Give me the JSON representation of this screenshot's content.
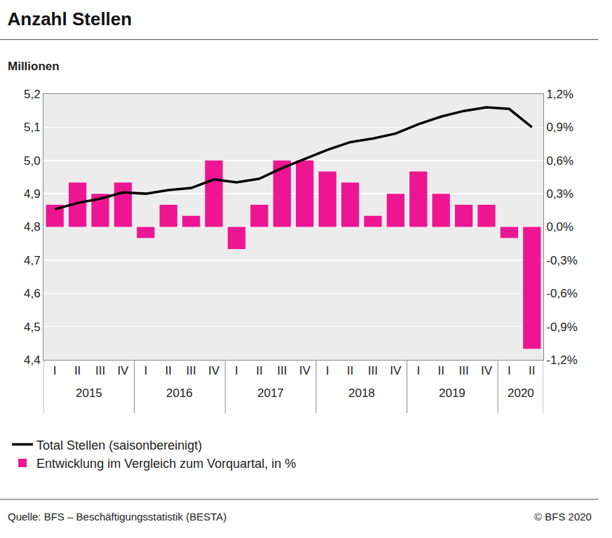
{
  "chart_data": {
    "type": "bar",
    "title": "Anzahl Stellen",
    "y_label": "Millionen",
    "source": "Quelle: BFS – Beschäftigungsstatistik (BESTA)",
    "copyright": "© BFS 2020",
    "categories": [
      "I",
      "II",
      "III",
      "IV",
      "I",
      "II",
      "III",
      "IV",
      "I",
      "II",
      "III",
      "IV",
      "I",
      "II",
      "III",
      "IV",
      "I",
      "II",
      "III",
      "IV",
      "I",
      "II"
    ],
    "x_groups": [
      {
        "label": "2015",
        "count": 4
      },
      {
        "label": "2016",
        "count": 4
      },
      {
        "label": "2017",
        "count": 4
      },
      {
        "label": "2018",
        "count": 4
      },
      {
        "label": "2019",
        "count": 4
      },
      {
        "label": "2020",
        "count": 2
      }
    ],
    "series": [
      {
        "name": "Entwicklung im Vergleich zum Vorquartal, in %",
        "type": "bar",
        "axis": "y2",
        "color": "#ee1592",
        "values": [
          0.2,
          0.4,
          0.3,
          0.4,
          -0.1,
          0.2,
          0.1,
          0.6,
          -0.2,
          0.2,
          0.6,
          0.6,
          0.5,
          0.4,
          0.1,
          0.3,
          0.5,
          0.3,
          0.2,
          0.2,
          -0.1,
          -1.1
        ]
      },
      {
        "name": "Total Stellen (saisonbereinigt)",
        "type": "line",
        "color": "#000000",
        "values": [
          4.853,
          4.872,
          4.885,
          4.904,
          4.9,
          4.911,
          4.917,
          4.943,
          4.934,
          4.945,
          4.977,
          5.004,
          5.032,
          5.055,
          5.066,
          5.081,
          5.109,
          5.132,
          5.149,
          5.16,
          5.155,
          5.1
        ]
      }
    ],
    "ylim": [
      4.4,
      5.2
    ],
    "yticks": [
      {
        "value": 4.4,
        "label": "4,4"
      },
      {
        "value": 4.5,
        "label": "4,5"
      },
      {
        "value": 4.6,
        "label": "4,6"
      },
      {
        "value": 4.7,
        "label": "4,7"
      },
      {
        "value": 4.8,
        "label": "4,8"
      },
      {
        "value": 4.9,
        "label": "4,9"
      },
      {
        "value": 5.0,
        "label": "5,0"
      },
      {
        "value": 5.1,
        "label": "5,1"
      },
      {
        "value": 5.2,
        "label": "5,2"
      }
    ],
    "y2lim": [
      -1.2,
      1.2
    ],
    "y2ticks": [
      {
        "value": -1.2,
        "label": "-1,2%"
      },
      {
        "value": -0.9,
        "label": "-0,9%"
      },
      {
        "value": -0.6,
        "label": "-0,6%"
      },
      {
        "value": -0.3,
        "label": "-0,3%"
      },
      {
        "value": 0,
        "label": "0,0%"
      },
      {
        "value": 0.3,
        "label": "0,3%"
      },
      {
        "value": 0.6,
        "label": "0,6%"
      },
      {
        "value": 0.9,
        "label": "0,9%"
      },
      {
        "value": 1.2,
        "label": "1,2%"
      }
    ],
    "grid": true
  }
}
